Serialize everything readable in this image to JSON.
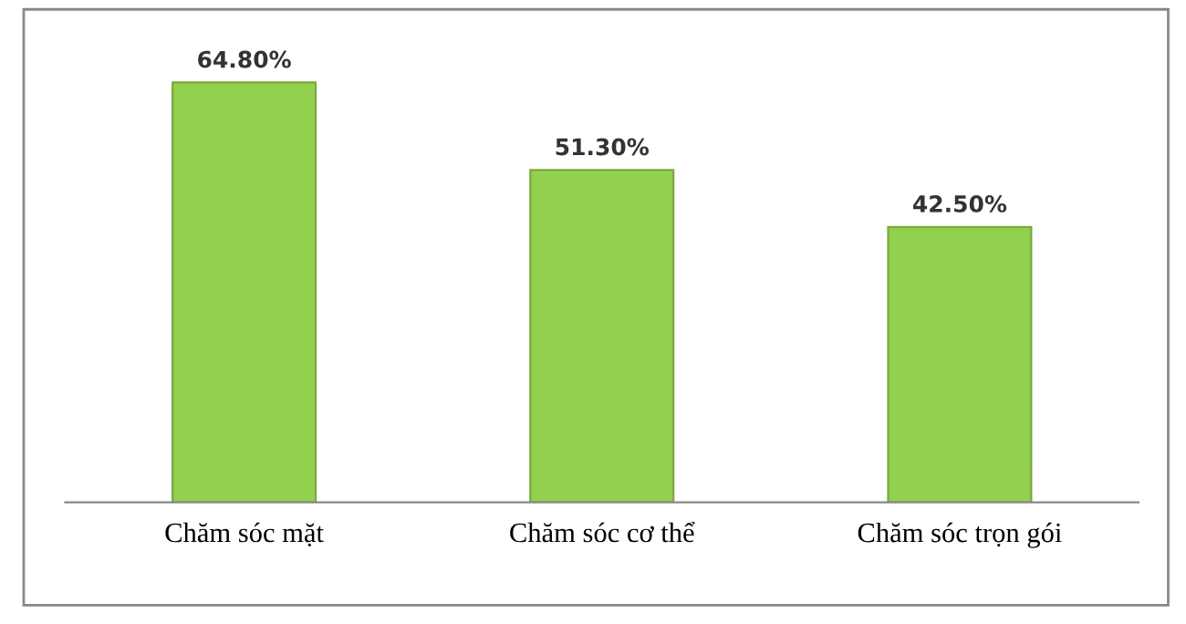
{
  "chart_data": {
    "type": "bar",
    "categories": [
      "Chăm sóc mặt",
      "Chăm sóc cơ thể",
      "Chăm sóc trọn gói"
    ],
    "values": [
      64.8,
      51.3,
      42.5
    ],
    "color": "#92d050",
    "value_labels": [
      "64.80%",
      "51.30%",
      "42.50%"
    ],
    "grid": false,
    "legend": false
  }
}
